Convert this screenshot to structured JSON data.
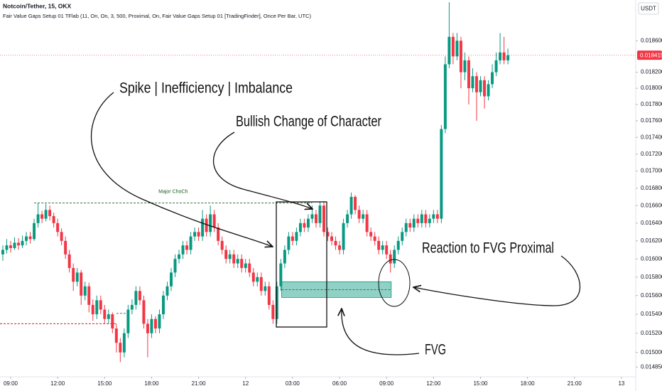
{
  "chart_data": {
    "type": "candlestick",
    "title": "Notcoin/Tether, 15, OKX",
    "subtitle": "Fair Value Gaps Setup 01 TFlab (11, On, On, 3, 500, Proximal, On, Fair Value Gaps Setup 01 [TradingFinder], Once Per Bar, UTC)",
    "currency": "USDT",
    "log_scale": true,
    "grid": false,
    "up_color": "#089981",
    "down_color": "#f23645",
    "xlim": [
      8.32,
      48.91
    ],
    "xticks": [
      {
        "value": 9,
        "label": "09:00"
      },
      {
        "value": 12,
        "label": "12:00"
      },
      {
        "value": 15,
        "label": "15:00"
      },
      {
        "value": 18,
        "label": "18:00"
      },
      {
        "value": 21,
        "label": "21:00"
      },
      {
        "value": 24,
        "label": "12"
      },
      {
        "value": 27,
        "label": "03:00"
      },
      {
        "value": 30,
        "label": "06:00"
      },
      {
        "value": 33,
        "label": "09:00"
      },
      {
        "value": 36,
        "label": "12:00"
      },
      {
        "value": 39,
        "label": "15:00"
      },
      {
        "value": 42,
        "label": "18:00"
      },
      {
        "value": 45,
        "label": "21:00"
      },
      {
        "value": 48,
        "label": "13"
      }
    ],
    "ylim": [
      0.01475,
      0.01913
    ],
    "yticks": [
      {
        "value": 0.01485,
        "label": "0.014850"
      },
      {
        "value": 0.015,
        "label": "0.015000"
      },
      {
        "value": 0.0152,
        "label": "0.015200"
      },
      {
        "value": 0.0154,
        "label": "0.015400"
      },
      {
        "value": 0.0156,
        "label": "0.015600"
      },
      {
        "value": 0.0158,
        "label": "0.015800"
      },
      {
        "value": 0.016,
        "label": "0.016000"
      },
      {
        "value": 0.0162,
        "label": "0.016200"
      },
      {
        "value": 0.0164,
        "label": "0.016400"
      },
      {
        "value": 0.0166,
        "label": "0.016600"
      },
      {
        "value": 0.0168,
        "label": "0.016800"
      },
      {
        "value": 0.017,
        "label": "0.017000"
      },
      {
        "value": 0.0172,
        "label": "0.017200"
      },
      {
        "value": 0.0174,
        "label": "0.017400"
      },
      {
        "value": 0.0176,
        "label": "0.017600"
      },
      {
        "value": 0.0178,
        "label": "0.017800"
      },
      {
        "value": 0.018,
        "label": "0.018000"
      },
      {
        "value": 0.0182,
        "label": "0.018200"
      },
      {
        "value": 0.0186,
        "label": "0.018600"
      }
    ],
    "last_price": {
      "value": 0.018415,
      "label": "0.018415",
      "color": "#f23645"
    },
    "x": [
      8.5,
      8.75,
      9,
      9.25,
      9.5,
      9.75,
      10,
      10.25,
      10.5,
      10.75,
      11,
      11.25,
      11.5,
      11.75,
      12,
      12.25,
      12.5,
      12.75,
      13,
      13.25,
      13.5,
      13.75,
      14,
      14.25,
      14.5,
      14.75,
      15,
      15.25,
      15.5,
      15.75,
      16,
      16.25,
      16.5,
      16.75,
      17,
      17.25,
      17.5,
      17.75,
      18,
      18.25,
      18.5,
      18.75,
      19,
      19.25,
      19.5,
      19.75,
      20,
      20.25,
      20.5,
      20.75,
      21,
      21.25,
      21.5,
      21.75,
      22,
      22.25,
      22.5,
      22.75,
      23,
      23.25,
      23.5,
      23.75,
      24,
      24.25,
      24.5,
      24.75,
      25,
      25.25,
      25.5,
      25.75,
      26,
      26.25,
      26.5,
      26.75,
      27,
      27.25,
      27.5,
      27.75,
      28,
      28.25,
      28.5,
      28.75,
      29,
      29.25,
      29.5,
      29.75,
      30,
      30.25,
      30.5,
      30.75,
      31,
      31.25,
      31.5,
      31.75,
      32,
      32.25,
      32.5,
      32.75,
      33,
      33.25,
      33.5,
      33.75,
      34,
      34.25,
      34.5,
      34.75,
      35,
      35.25,
      35.5,
      35.75,
      36,
      36.25,
      36.5,
      36.75,
      37,
      37.25,
      37.5,
      37.75,
      38,
      38.25,
      38.5,
      38.75,
      39,
      39.25,
      39.5,
      39.75,
      40,
      40.25,
      40.5,
      40.75
    ],
    "open": [
      0.01605,
      0.0161,
      0.01615,
      0.01612,
      0.01618,
      0.01615,
      0.0162,
      0.01625,
      0.01622,
      0.0164,
      0.0165,
      0.01645,
      0.01655,
      0.01648,
      0.0164,
      0.0163,
      0.0162,
      0.01605,
      0.0159,
      0.01575,
      0.01585,
      0.0156,
      0.0157,
      0.0155,
      0.0154,
      0.01555,
      0.01545,
      0.01535,
      0.0154,
      0.01525,
      0.0151,
      0.015,
      0.0152,
      0.01545,
      0.0155,
      0.01565,
      0.01555,
      0.0153,
      0.0152,
      0.01535,
      0.01525,
      0.0154,
      0.0156,
      0.0157,
      0.01585,
      0.016,
      0.01605,
      0.01615,
      0.0161,
      0.01625,
      0.0163,
      0.01625,
      0.01645,
      0.0163,
      0.0165,
      0.01635,
      0.0162,
      0.0161,
      0.016,
      0.01605,
      0.01595,
      0.016,
      0.0159,
      0.01595,
      0.01585,
      0.01575,
      0.0158,
      0.01565,
      0.0157,
      0.0155,
      0.01535,
      0.0157,
      0.01595,
      0.0161,
      0.01625,
      0.0162,
      0.0163,
      0.0164,
      0.01635,
      0.01645,
      0.0165,
      0.0164,
      0.0166,
      0.0163,
      0.01625,
      0.0162,
      0.01615,
      0.0161,
      0.0164,
      0.0165,
      0.0167,
      0.01655,
      0.01645,
      0.0165,
      0.0163,
      0.01625,
      0.0162,
      0.0161,
      0.01615,
      0.01605,
      0.01595,
      0.0161,
      0.0162,
      0.0163,
      0.0164,
      0.01635,
      0.01645,
      0.0164,
      0.0165,
      0.0164,
      0.01645,
      0.0165,
      0.01645,
      0.0175,
      0.0183,
      0.01865,
      0.0184,
      0.0186,
      0.0182,
      0.01835,
      0.018,
      0.01815,
      0.01795,
      0.0181,
      0.0179,
      0.01805,
      0.0182,
      0.01835,
      0.01845,
      0.01835
    ],
    "high": [
      0.01615,
      0.01622,
      0.0162,
      0.01624,
      0.01623,
      0.01626,
      0.0163,
      0.0163,
      0.01645,
      0.01663,
      0.01654,
      0.01662,
      0.0166,
      0.01652,
      0.01645,
      0.01634,
      0.01625,
      0.0161,
      0.01595,
      0.0159,
      0.01588,
      0.01575,
      0.01574,
      0.01556,
      0.0156,
      0.0156,
      0.0155,
      0.01545,
      0.01542,
      0.0153,
      0.01515,
      0.01525,
      0.0155,
      0.01556,
      0.0157,
      0.0157,
      0.0156,
      0.01535,
      0.0154,
      0.01538,
      0.01545,
      0.01565,
      0.01575,
      0.0159,
      0.01605,
      0.0161,
      0.0162,
      0.0162,
      0.0163,
      0.01635,
      0.01635,
      0.01655,
      0.0165,
      0.0166,
      0.01655,
      0.0164,
      0.01625,
      0.01615,
      0.0161,
      0.0161,
      0.01605,
      0.01605,
      0.016,
      0.016,
      0.0159,
      0.01585,
      0.01585,
      0.01575,
      0.01575,
      0.01555,
      0.01575,
      0.016,
      0.01615,
      0.0163,
      0.0163,
      0.01635,
      0.01645,
      0.01645,
      0.0165,
      0.0166,
      0.01655,
      0.01665,
      0.01665,
      0.01635,
      0.0163,
      0.01625,
      0.0162,
      0.01645,
      0.01655,
      0.01675,
      0.01672,
      0.0166,
      0.01655,
      0.01655,
      0.01635,
      0.0163,
      0.01625,
      0.0162,
      0.0162,
      0.0161,
      0.01615,
      0.01625,
      0.01635,
      0.01645,
      0.01645,
      0.0165,
      0.0165,
      0.01655,
      0.01655,
      0.0165,
      0.01655,
      0.01655,
      0.01755,
      0.0184,
      0.0191,
      0.0187,
      0.0187,
      0.01865,
      0.01845,
      0.0184,
      0.01825,
      0.0182,
      0.01815,
      0.01815,
      0.0181,
      0.0183,
      0.01845,
      0.0187,
      0.01865,
      0.0185
    ],
    "low": [
      0.01598,
      0.01606,
      0.01607,
      0.0161,
      0.0161,
      0.01612,
      0.01615,
      0.01617,
      0.0162,
      0.01635,
      0.0164,
      0.01642,
      0.01643,
      0.01635,
      0.01625,
      0.01615,
      0.016,
      0.01585,
      0.01565,
      0.0157,
      0.0155,
      0.01555,
      0.01542,
      0.01533,
      0.01535,
      0.0154,
      0.0153,
      0.0153,
      0.0152,
      0.015,
      0.0149,
      0.01495,
      0.01515,
      0.0154,
      0.01545,
      0.0155,
      0.01525,
      0.01495,
      0.01515,
      0.0152,
      0.0152,
      0.01535,
      0.01555,
      0.01565,
      0.0158,
      0.01595,
      0.016,
      0.01605,
      0.01605,
      0.0162,
      0.0162,
      0.0162,
      0.01625,
      0.01625,
      0.0163,
      0.01615,
      0.01605,
      0.01595,
      0.01595,
      0.0159,
      0.0159,
      0.01585,
      0.01585,
      0.0158,
      0.0157,
      0.0157,
      0.0156,
      0.0156,
      0.01545,
      0.0153,
      0.0153,
      0.01565,
      0.0159,
      0.01605,
      0.01615,
      0.01615,
      0.01625,
      0.0163,
      0.0163,
      0.0164,
      0.01635,
      0.01635,
      0.01625,
      0.0162,
      0.01615,
      0.0161,
      0.01605,
      0.01605,
      0.01635,
      0.01645,
      0.0165,
      0.0164,
      0.0164,
      0.01625,
      0.0162,
      0.01615,
      0.01605,
      0.01605,
      0.016,
      0.01585,
      0.0159,
      0.01605,
      0.01615,
      0.01625,
      0.0163,
      0.0163,
      0.01635,
      0.01635,
      0.01635,
      0.01635,
      0.0164,
      0.0164,
      0.0164,
      0.01745,
      0.01825,
      0.0183,
      0.01835,
      0.018,
      0.0181,
      0.0178,
      0.01795,
      0.0176,
      0.0179,
      0.01775,
      0.01785,
      0.018,
      0.01815,
      0.0183,
      0.0183,
      0.0183
    ],
    "close": [
      0.0161,
      0.01615,
      0.01612,
      0.01618,
      0.01615,
      0.0162,
      0.01625,
      0.01622,
      0.0164,
      0.0165,
      0.01645,
      0.01655,
      0.01648,
      0.0164,
      0.0163,
      0.0162,
      0.01605,
      0.0159,
      0.01575,
      0.01585,
      0.0156,
      0.0157,
      0.0155,
      0.0154,
      0.01555,
      0.01545,
      0.01535,
      0.0154,
      0.01525,
      0.0151,
      0.015,
      0.0152,
      0.01545,
      0.0155,
      0.01565,
      0.01555,
      0.0153,
      0.0152,
      0.01535,
      0.01525,
      0.0154,
      0.0156,
      0.0157,
      0.01585,
      0.016,
      0.01605,
      0.01615,
      0.0161,
      0.01625,
      0.0163,
      0.01625,
      0.01645,
      0.0163,
      0.0165,
      0.01635,
      0.0162,
      0.0161,
      0.016,
      0.01605,
      0.01595,
      0.016,
      0.0159,
      0.01595,
      0.01585,
      0.01575,
      0.0158,
      0.01565,
      0.0157,
      0.0155,
      0.01535,
      0.0157,
      0.01595,
      0.0161,
      0.01625,
      0.0162,
      0.0163,
      0.0164,
      0.01635,
      0.01645,
      0.0165,
      0.0164,
      0.0166,
      0.0163,
      0.01625,
      0.0162,
      0.01615,
      0.0161,
      0.0164,
      0.0165,
      0.0167,
      0.01655,
      0.01645,
      0.0165,
      0.0163,
      0.01625,
      0.0162,
      0.0161,
      0.01615,
      0.01605,
      0.01595,
      0.0161,
      0.0162,
      0.0163,
      0.0164,
      0.01635,
      0.01645,
      0.0164,
      0.0165,
      0.0164,
      0.01645,
      0.0165,
      0.01645,
      0.0175,
      0.0183,
      0.01865,
      0.0184,
      0.0186,
      0.0182,
      0.01835,
      0.018,
      0.01815,
      0.01795,
      0.0181,
      0.0179,
      0.01805,
      0.0182,
      0.01835,
      0.01845,
      0.01835,
      0.018415
    ],
    "levels": [
      {
        "label": "Major ChoCh",
        "value": 0.01663,
        "from": 10.5,
        "to": 28.25,
        "color": "#1b5e20"
      },
      {
        "value": 0.0153,
        "from": 8.32,
        "to": 15.75,
        "color": "#c62828"
      },
      {
        "value": 0.01541,
        "from": 15.75,
        "to": 16.5,
        "color": "#555555"
      }
    ],
    "fvg_zone": {
      "low": 0.01558,
      "high": 0.01575,
      "from": 26.3,
      "to": 33.3,
      "color": "#089981"
    },
    "annotations": [
      "Spike | Inefficiency | Imbalance",
      "Bullish Change of Character",
      "Reaction to FVG Proximal",
      "FVG"
    ]
  }
}
